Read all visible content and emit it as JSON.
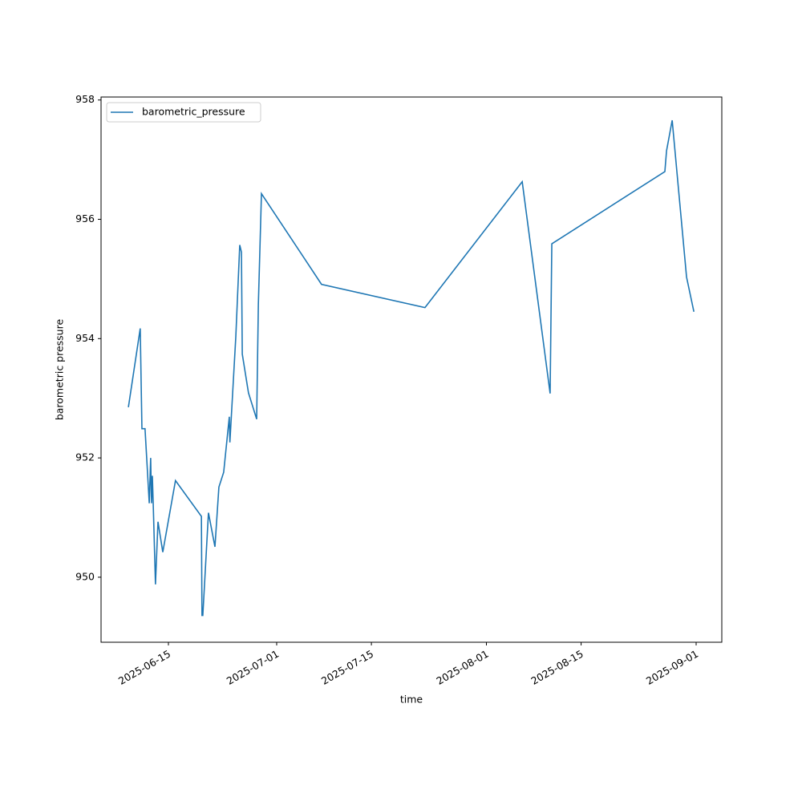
{
  "chart_data": {
    "type": "line",
    "xlabel": "time",
    "ylabel": "barometric pressure",
    "x": [
      "2025-06-09 02:00",
      "2025-06-10 20:00",
      "2025-06-11 02:00",
      "2025-06-11 13:00",
      "2025-06-12 04:00",
      "2025-06-12 09:00",
      "2025-06-12 12:00",
      "2025-06-12 15:00",
      "2025-06-12 18:00",
      "2025-06-13 02:00",
      "2025-06-13 11:00",
      "2025-06-14 04:00",
      "2025-06-16 01:00",
      "2025-06-19 21:00",
      "2025-06-19 23:00",
      "2025-06-20 02:00",
      "2025-06-20 22:00",
      "2025-06-21 21:00",
      "2025-06-22 11:00",
      "2025-06-23 04:00",
      "2025-06-24 00:00",
      "2025-06-24 02:00",
      "2025-06-24 23:00",
      "2025-06-25 13:00",
      "2025-06-25 19:00",
      "2025-06-25 22:00",
      "2025-06-26 20:00",
      "2025-06-28 01:00",
      "2025-06-28 07:00",
      "2025-06-28 18:00",
      "2025-07-07 15:00",
      "2025-07-22 22:00",
      "2025-08-06 07:00",
      "2025-08-10 10:00",
      "2025-08-10 16:00",
      "2025-08-27 09:00",
      "2025-08-27 15:00",
      "2025-08-28 11:00",
      "2025-08-30 14:00",
      "2025-08-31 16:00"
    ],
    "series": [
      {
        "name": "barometric_pressure",
        "color": "#1f77b4",
        "values": [
          952.85,
          954.17,
          952.49,
          952.49,
          951.24,
          952.0,
          951.24,
          951.7,
          951.24,
          949.88,
          950.93,
          950.42,
          951.62,
          951.02,
          949.36,
          949.36,
          951.08,
          950.51,
          951.51,
          951.76,
          952.69,
          952.26,
          954.03,
          955.57,
          955.45,
          953.74,
          953.09,
          952.65,
          954.57,
          956.43,
          954.91,
          954.52,
          956.63,
          953.08,
          955.59,
          956.8,
          957.15,
          957.66,
          955.03,
          954.45
        ]
      }
    ],
    "xlim": [
      "2025-06-05 01:00",
      "2025-09-04 19:00"
    ],
    "xticks": [
      "2025-06-15",
      "2025-07-01",
      "2025-07-15",
      "2025-08-01",
      "2025-08-15",
      "2025-09-01"
    ],
    "ylim": [
      948.91,
      958.05
    ],
    "yticks": [
      950,
      952,
      954,
      956,
      958
    ],
    "legend": "upper-left"
  }
}
